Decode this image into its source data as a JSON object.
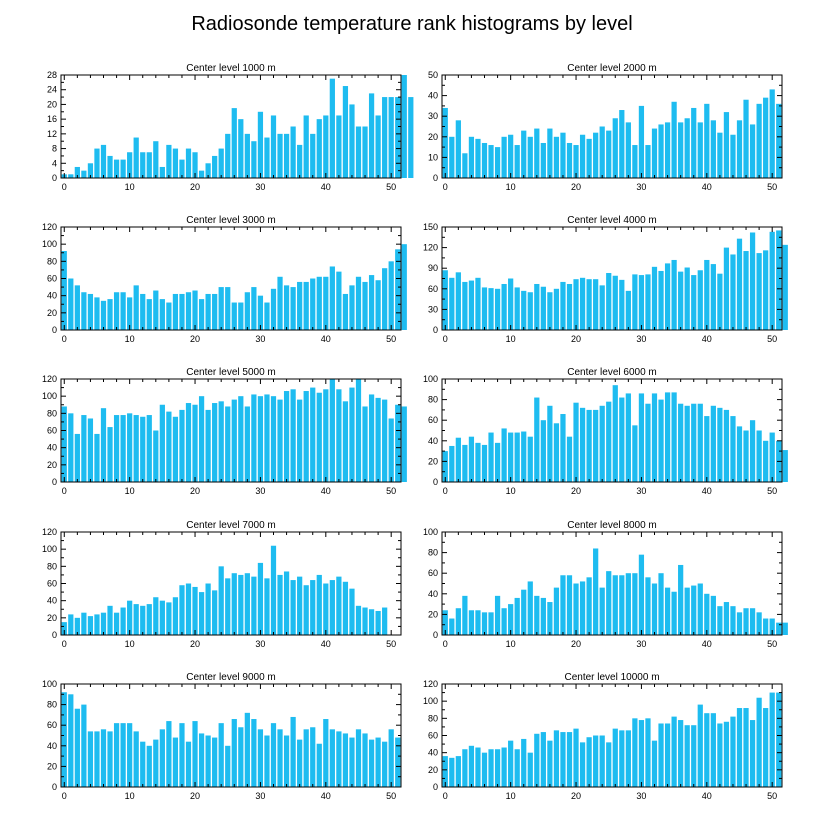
{
  "chart_data": {
    "title": "Radiosonde temperature rank histograms by level",
    "type": "bar",
    "x_categories_range": [
      0,
      51
    ],
    "x_ticks": [
      0,
      10,
      20,
      30,
      40,
      50
    ],
    "bar_color": "#1ebcf0",
    "panels": [
      {
        "title": "Center level 1000 m",
        "type": "bar",
        "ylim": [
          0,
          28
        ],
        "yticks": [
          0,
          4,
          8,
          12,
          16,
          20,
          24,
          28
        ],
        "values": [
          1,
          1,
          3,
          2,
          4,
          8,
          9,
          6,
          5,
          5,
          7,
          11,
          7,
          7,
          10,
          3,
          9,
          8,
          5,
          8,
          7,
          2,
          4,
          6,
          8,
          12,
          19,
          16,
          12,
          10,
          18,
          11,
          17,
          12,
          12,
          14,
          9,
          17,
          12,
          16,
          17,
          27,
          17,
          25,
          20,
          14,
          14,
          23,
          17,
          22,
          22,
          22,
          28,
          22
        ]
      },
      {
        "title": "Center level 2000 m",
        "type": "bar",
        "ylim": [
          0,
          50
        ],
        "yticks": [
          0,
          10,
          20,
          30,
          40,
          50
        ],
        "values": [
          34,
          20,
          28,
          12,
          20,
          19,
          17,
          16,
          15,
          20,
          21,
          16,
          23,
          20,
          24,
          17,
          24,
          20,
          22,
          17,
          16,
          21,
          19,
          22,
          25,
          23,
          29,
          33,
          27,
          16,
          35,
          16,
          24,
          26,
          27,
          37,
          27,
          29,
          34,
          27,
          36,
          28,
          22,
          32,
          21,
          28,
          38,
          26,
          36,
          39,
          43,
          36
        ]
      },
      {
        "title": "Center level 3000 m",
        "type": "bar",
        "ylim": [
          0,
          120
        ],
        "yticks": [
          0,
          20,
          40,
          60,
          80,
          100,
          120
        ],
        "values": [
          92,
          60,
          52,
          44,
          42,
          38,
          34,
          36,
          44,
          44,
          38,
          52,
          42,
          36,
          46,
          36,
          32,
          42,
          42,
          44,
          46,
          36,
          42,
          42,
          50,
          50,
          32,
          32,
          44,
          50,
          40,
          32,
          48,
          62,
          52,
          50,
          56,
          56,
          60,
          62,
          62,
          74,
          68,
          42,
          52,
          62,
          56,
          64,
          58,
          72,
          80,
          94,
          100
        ]
      },
      {
        "title": "Center level 4000 m",
        "type": "bar",
        "ylim": [
          0,
          150
        ],
        "yticks": [
          0,
          30,
          60,
          90,
          120,
          150
        ],
        "values": [
          87,
          76,
          84,
          70,
          72,
          76,
          62,
          61,
          60,
          67,
          75,
          62,
          57,
          55,
          67,
          63,
          55,
          60,
          70,
          67,
          74,
          76,
          74,
          74,
          65,
          83,
          79,
          73,
          57,
          81,
          80,
          81,
          92,
          86,
          97,
          102,
          85,
          91,
          80,
          87,
          102,
          96,
          82,
          120,
          110,
          133,
          115,
          142,
          112,
          116,
          143,
          145,
          124
        ]
      },
      {
        "title": "Center level 5000 m",
        "type": "bar",
        "ylim": [
          0,
          120
        ],
        "yticks": [
          0,
          20,
          40,
          60,
          80,
          100,
          120
        ],
        "values": [
          88,
          80,
          56,
          78,
          74,
          56,
          86,
          64,
          78,
          78,
          80,
          78,
          76,
          78,
          60,
          90,
          82,
          76,
          84,
          92,
          90,
          100,
          84,
          92,
          94,
          88,
          96,
          100,
          88,
          102,
          100,
          102,
          100,
          96,
          106,
          108,
          96,
          106,
          110,
          104,
          108,
          120,
          108,
          94,
          110,
          120,
          88,
          102,
          98,
          96,
          74,
          90,
          88
        ]
      },
      {
        "title": "Center level 6000 m",
        "type": "bar",
        "ylim": [
          0,
          100
        ],
        "yticks": [
          0,
          20,
          40,
          60,
          80,
          100
        ],
        "values": [
          30,
          35,
          43,
          36,
          44,
          38,
          36,
          48,
          38,
          52,
          48,
          48,
          49,
          44,
          82,
          60,
          74,
          57,
          66,
          44,
          77,
          72,
          70,
          70,
          74,
          78,
          94,
          82,
          86,
          55,
          86,
          76,
          86,
          80,
          87,
          87,
          76,
          74,
          76,
          76,
          64,
          74,
          72,
          70,
          64,
          54,
          50,
          60,
          50,
          40,
          48,
          40,
          31
        ]
      },
      {
        "title": "Center level 7000 m",
        "type": "bar",
        "ylim": [
          0,
          120
        ],
        "yticks": [
          0,
          20,
          40,
          60,
          80,
          100,
          120
        ],
        "values": [
          15,
          24,
          20,
          26,
          22,
          24,
          26,
          34,
          26,
          32,
          40,
          36,
          34,
          36,
          44,
          40,
          38,
          44,
          58,
          60,
          56,
          50,
          60,
          52,
          80,
          66,
          72,
          70,
          72,
          68,
          84,
          66,
          104,
          70,
          74,
          64,
          68,
          58,
          64,
          70,
          60,
          64,
          68,
          62,
          54,
          34,
          32,
          30,
          28,
          32
        ]
      },
      {
        "title": "Center level 8000 m",
        "type": "bar",
        "ylim": [
          0,
          100
        ],
        "yticks": [
          0,
          20,
          40,
          60,
          80,
          100
        ],
        "values": [
          24,
          16,
          26,
          38,
          24,
          24,
          22,
          22,
          38,
          26,
          30,
          36,
          44,
          52,
          38,
          36,
          32,
          46,
          58,
          58,
          50,
          52,
          56,
          84,
          46,
          62,
          58,
          58,
          60,
          60,
          78,
          56,
          50,
          60,
          46,
          42,
          68,
          46,
          48,
          50,
          40,
          38,
          28,
          32,
          28,
          22,
          26,
          26,
          22,
          16,
          16,
          12,
          12
        ]
      },
      {
        "title": "Center level 9000 m",
        "type": "bar",
        "ylim": [
          0,
          100
        ],
        "yticks": [
          0,
          20,
          40,
          60,
          80,
          100
        ],
        "values": [
          92,
          90,
          76,
          80,
          54,
          54,
          56,
          54,
          62,
          62,
          62,
          54,
          44,
          40,
          46,
          56,
          64,
          48,
          62,
          44,
          64,
          52,
          50,
          48,
          62,
          40,
          66,
          58,
          72,
          66,
          56,
          50,
          62,
          56,
          50,
          68,
          46,
          56,
          58,
          42,
          66,
          56,
          54,
          52,
          48,
          56,
          52,
          46,
          48,
          44,
          56,
          48
        ]
      },
      {
        "title": "Center level 10000 m",
        "type": "bar",
        "ylim": [
          0,
          120
        ],
        "yticks": [
          0,
          20,
          40,
          60,
          80,
          100,
          120
        ],
        "values": [
          36,
          34,
          36,
          44,
          48,
          46,
          40,
          44,
          44,
          46,
          54,
          44,
          56,
          40,
          62,
          64,
          54,
          66,
          64,
          64,
          68,
          52,
          58,
          60,
          60,
          52,
          68,
          66,
          66,
          80,
          78,
          80,
          54,
          74,
          74,
          82,
          78,
          72,
          72,
          96,
          86,
          86,
          74,
          76,
          82,
          92,
          92,
          78,
          104,
          92,
          110,
          110
        ]
      }
    ]
  }
}
